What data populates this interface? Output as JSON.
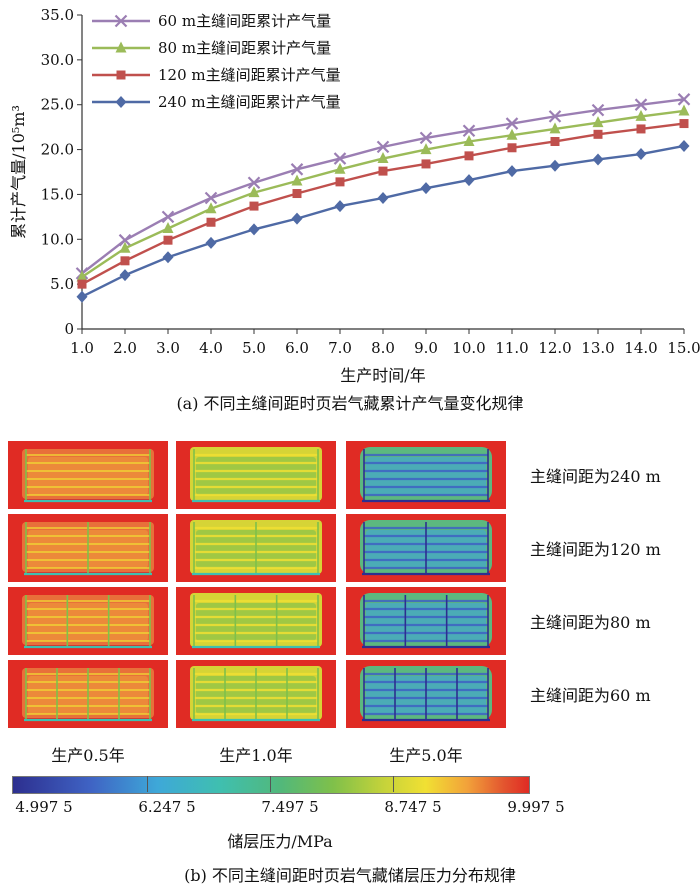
{
  "chart_data": {
    "type": "line",
    "x": [
      1.0,
      2.0,
      3.0,
      4.0,
      5.0,
      6.0,
      7.0,
      8.0,
      9.0,
      10.0,
      11.0,
      12.0,
      13.0,
      14.0,
      15.0
    ],
    "x_tick_labels": [
      "1.0",
      "2.0",
      "3.0",
      "4.0",
      "5.0",
      "6.0",
      "7.0",
      "8.0",
      "9.0",
      "10.0",
      "11.0",
      "12.0",
      "13.0",
      "14.0",
      "15.0"
    ],
    "y_tick_labels": [
      "0",
      "5.0",
      "10.0",
      "15.0",
      "20.0",
      "25.0",
      "30.0",
      "35.0"
    ],
    "y_ticks": [
      0,
      5,
      10,
      15,
      20,
      25,
      30,
      35
    ],
    "xlim": [
      1,
      15
    ],
    "ylim": [
      0,
      35
    ],
    "xlabel": "生产时间/年",
    "ylabel": "累计产气量/10⁵m³",
    "legend_position": "top-left",
    "series": [
      {
        "name": "60 m主缝间距累计产气量",
        "color": "#9b7eb3",
        "marker": "x",
        "values": [
          6.2,
          9.9,
          12.5,
          14.6,
          16.3,
          17.8,
          19.0,
          20.3,
          21.3,
          22.1,
          22.9,
          23.7,
          24.4,
          25.0,
          25.6
        ]
      },
      {
        "name": "80 m主缝间距累计产气量",
        "color": "#9bbb59",
        "marker": "triangle",
        "values": [
          5.8,
          9.0,
          11.2,
          13.4,
          15.2,
          16.5,
          17.8,
          19.0,
          20.0,
          20.9,
          21.6,
          22.3,
          23.0,
          23.7,
          24.3
        ]
      },
      {
        "name": "120 m主缝间距累计产气量",
        "color": "#c0504d",
        "marker": "square",
        "values": [
          5.0,
          7.6,
          9.9,
          11.9,
          13.7,
          15.1,
          16.4,
          17.6,
          18.4,
          19.3,
          20.2,
          20.9,
          21.7,
          22.3,
          22.9
        ]
      },
      {
        "name": "240 m主缝间距累计产气量",
        "color": "#4f6aa5",
        "marker": "diamond",
        "values": [
          3.6,
          6.0,
          8.0,
          9.6,
          11.1,
          12.3,
          13.7,
          14.6,
          15.7,
          16.6,
          17.6,
          18.2,
          18.9,
          19.5,
          20.4
        ]
      }
    ]
  },
  "caption_a": "(a) 不同主缝间距时页岩气藏累计产气量变化规律",
  "caption_b": "(b) 不同主缝间距时页岩气藏储层压力分布规律",
  "pressure_maps": {
    "columns": [
      "生产0.5年",
      "生产1.0年",
      "生产5.0年"
    ],
    "rows": [
      {
        "label": "主缝间距为240 m",
        "fractures": 1
      },
      {
        "label": "主缝间距为120 m",
        "fractures": 2
      },
      {
        "label": "主缝间距为80 m",
        "fractures": 3
      },
      {
        "label": "主缝间距为60 m",
        "fractures": 4
      }
    ],
    "colorbar": {
      "labels": [
        "4.997 5",
        "6.247 5",
        "7.497 5",
        "8.747 5",
        "9.997 5"
      ],
      "title": "储层压力/MPa",
      "colors": [
        "#2d2f8f",
        "#3ea8d8",
        "#52b87a",
        "#f1e033",
        "#e02b24"
      ]
    }
  }
}
